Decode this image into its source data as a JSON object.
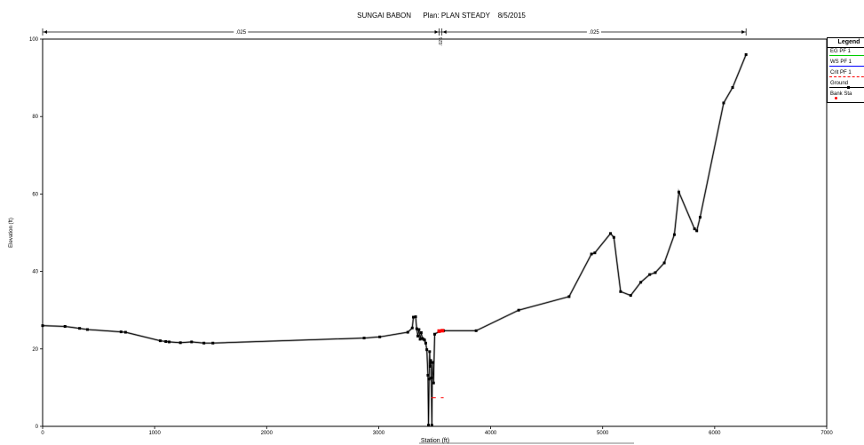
{
  "chart_data": {
    "type": "line",
    "title": "SUNGAI BABON      Plan: PLAN STEADY    8/5/2015",
    "xlabel": "Station (ft)",
    "ylabel": "Elevation (ft)",
    "xlim": [
      0,
      7000
    ],
    "ylim": [
      0,
      100
    ],
    "x_ticks": [
      0,
      1000,
      2000,
      3000,
      4000,
      5000,
      6000,
      7000
    ],
    "y_ticks": [
      0,
      20,
      40,
      60,
      80,
      100
    ],
    "grid": false,
    "legend_placement": "top-right outside",
    "legend_title": "Legend",
    "manning": {
      "labels": [
        ".025",
        ".025",
        ".025"
      ],
      "breaks": [
        0,
        3540,
        3565,
        6280
      ]
    },
    "series": [
      {
        "name": "Ground",
        "color": "#000000",
        "points": [
          [
            0,
            26
          ],
          [
            200,
            25.8
          ],
          [
            330,
            25.3
          ],
          [
            400,
            25
          ],
          [
            700,
            24.4
          ],
          [
            740,
            24.3
          ],
          [
            1050,
            22.1
          ],
          [
            1100,
            21.9
          ],
          [
            1130,
            21.8
          ],
          [
            1230,
            21.6
          ],
          [
            1330,
            21.8
          ],
          [
            1440,
            21.5
          ],
          [
            1520,
            21.5
          ],
          [
            2870,
            22.8
          ],
          [
            3010,
            23.1
          ],
          [
            3260,
            24.3
          ],
          [
            3300,
            25.4
          ],
          [
            3310,
            28.2
          ],
          [
            3330,
            28.3
          ],
          [
            3340,
            25.2
          ],
          [
            3350,
            23.3
          ],
          [
            3360,
            25
          ],
          [
            3370,
            22.5
          ],
          [
            3380,
            24.2
          ],
          [
            3390,
            22.7
          ],
          [
            3400,
            22.5
          ],
          [
            3410,
            22.3
          ],
          [
            3420,
            21.5
          ],
          [
            3430,
            19.8
          ],
          [
            3440,
            13.2
          ],
          [
            3445,
            0.3
          ],
          [
            3450,
            12.2
          ],
          [
            3455,
            19.3
          ],
          [
            3460,
            15.5
          ],
          [
            3465,
            17
          ],
          [
            3470,
            12.5
          ],
          [
            3475,
            0.3
          ],
          [
            3480,
            16.5
          ],
          [
            3490,
            11.2
          ],
          [
            3500,
            23.8
          ],
          [
            3540,
            24.5
          ],
          [
            3580,
            24.7
          ],
          [
            3870,
            24.7
          ],
          [
            4250,
            30
          ],
          [
            4700,
            33.5
          ],
          [
            4900,
            44.5
          ],
          [
            4930,
            44.8
          ],
          [
            5070,
            49.8
          ],
          [
            5100,
            48.8
          ],
          [
            5160,
            34.8
          ],
          [
            5250,
            33.8
          ],
          [
            5340,
            37.2
          ],
          [
            5420,
            39.2
          ],
          [
            5470,
            39.7
          ],
          [
            5550,
            42.2
          ],
          [
            5640,
            49.5
          ],
          [
            5680,
            60.5
          ],
          [
            5820,
            51
          ],
          [
            5840,
            50.5
          ],
          [
            5870,
            54
          ],
          [
            6080,
            83.5
          ],
          [
            6160,
            87.5
          ],
          [
            6280,
            96
          ]
        ]
      },
      {
        "name": "Bank Sta",
        "color": "#ff0000",
        "points": [
          [
            3540,
            24.6
          ],
          [
            3570,
            24.7
          ]
        ]
      },
      {
        "name": "WS PF 1",
        "color": "#ff0000",
        "points": [
          [
            3470,
            7.4
          ],
          [
            3510,
            7.4
          ],
          [
            3555,
            7.4
          ],
          [
            3580,
            7.4
          ]
        ]
      }
    ],
    "legend_entries": [
      {
        "label": "EG PF 1",
        "color": "#00cc00",
        "style": "line"
      },
      {
        "label": "WS PF 1",
        "color": "#0000ff",
        "style": "line"
      },
      {
        "label": "Crit PF 1",
        "color": "#ff0000",
        "style": "dash"
      },
      {
        "label": "Ground",
        "color": "#000000",
        "style": "line-marker"
      },
      {
        "label": "Bank Sta",
        "color": "#ff0000",
        "style": "dot"
      }
    ]
  }
}
